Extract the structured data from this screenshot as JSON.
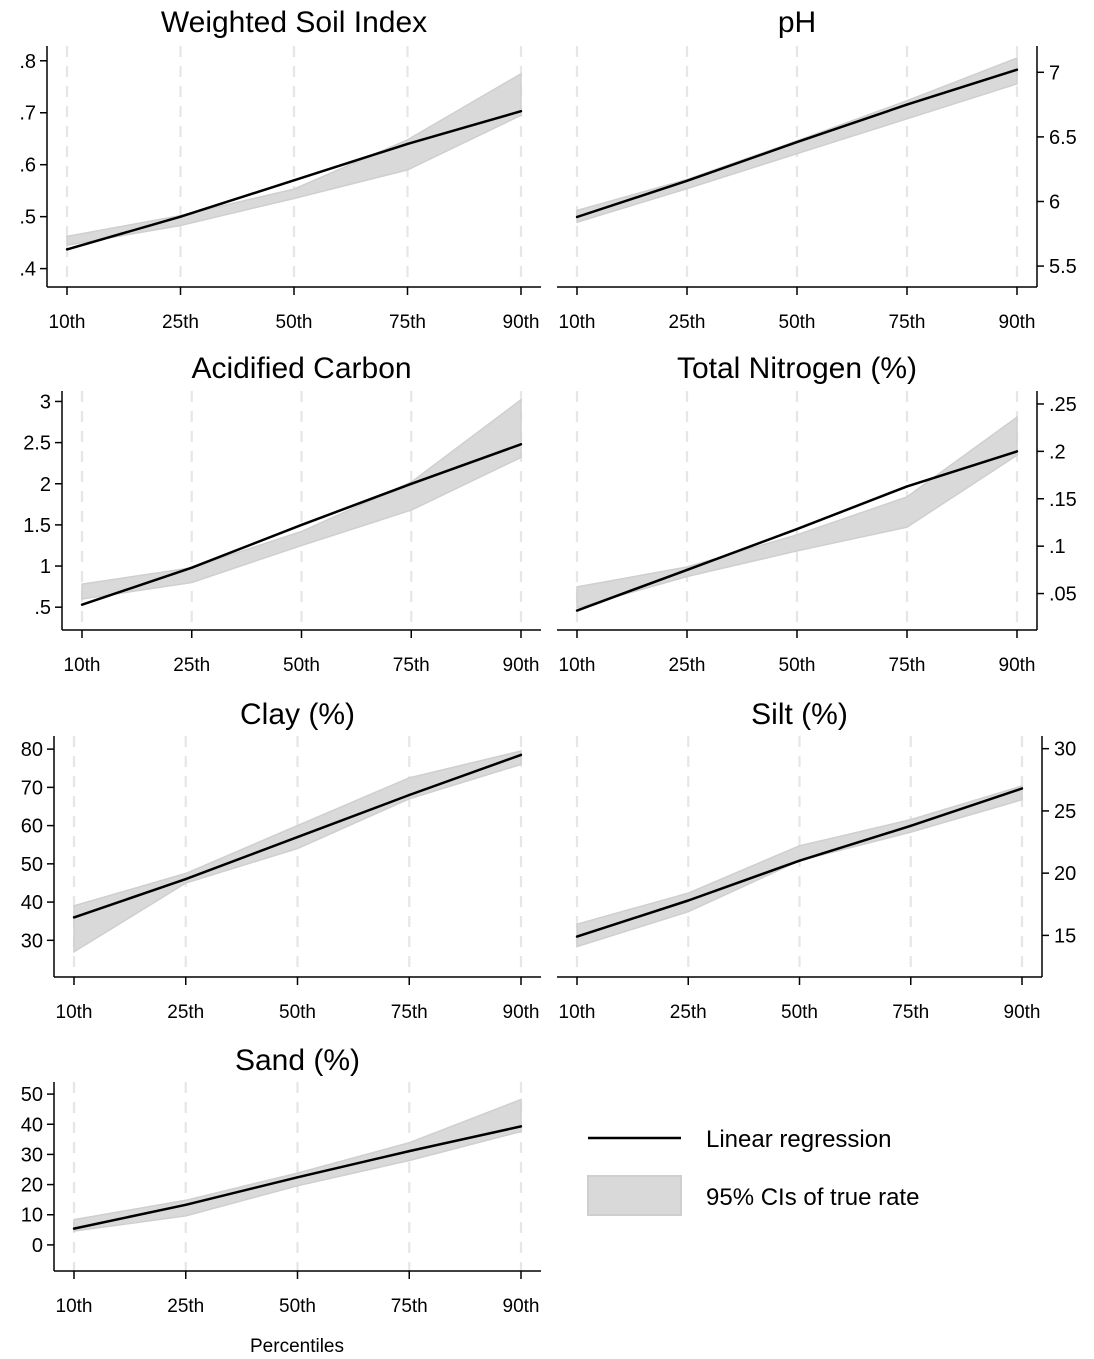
{
  "figure": {
    "xlabel": "Percentiles"
  },
  "legend": {
    "line_label": "Linear regression",
    "band_label": "95% CIs of true rate"
  },
  "colors": {
    "line": "#000000",
    "band": "#d9d9d9",
    "band_edge": "#cfcfcf",
    "gridline": "#e6e6e6"
  },
  "chart_data": [
    {
      "type": "line",
      "title": "Weighted Soil Index",
      "categories": [
        "10th",
        "25th",
        "50th",
        "75th",
        "90th"
      ],
      "series": [
        {
          "name": "Linear regression",
          "values": [
            0.437,
            0.5,
            0.57,
            0.64,
            0.703
          ]
        },
        {
          "name": "95% CIs of true rate",
          "lower": [
            0.445,
            0.483,
            0.535,
            0.59,
            0.695
          ],
          "upper": [
            0.462,
            0.502,
            0.553,
            0.648,
            0.775
          ]
        }
      ],
      "y_ticks": [
        ".4",
        ".5",
        ".6",
        ".7",
        ".8"
      ],
      "y_tick_values": [
        0.4,
        0.5,
        0.6,
        0.7,
        0.8
      ],
      "ylim": [
        0.38,
        0.84
      ],
      "y_axis_side": "left",
      "grid": "vertical dashed"
    },
    {
      "type": "line",
      "title": "pH",
      "categories": [
        "10th",
        "25th",
        "50th",
        "75th",
        "90th"
      ],
      "series": [
        {
          "name": "Linear regression",
          "values": [
            5.88,
            6.16,
            6.46,
            6.75,
            7.02
          ]
        },
        {
          "name": "95% CIs of true rate",
          "lower": [
            5.84,
            6.1,
            6.37,
            6.64,
            6.91
          ],
          "upper": [
            5.93,
            6.17,
            6.47,
            6.78,
            7.11
          ]
        }
      ],
      "y_ticks": [
        "5.5",
        "6",
        "6.5",
        "7"
      ],
      "y_tick_values": [
        5.5,
        6,
        6.5,
        7
      ],
      "ylim": [
        5.4,
        7.25
      ],
      "y_axis_side": "right",
      "grid": "vertical dashed"
    },
    {
      "type": "line",
      "title": "Acidified Carbon",
      "categories": [
        "10th",
        "25th",
        "50th",
        "75th",
        "90th"
      ],
      "series": [
        {
          "name": "Linear regression",
          "values": [
            0.53,
            0.98,
            1.5,
            2.0,
            2.48
          ]
        },
        {
          "name": "95% CIs of true rate",
          "lower": [
            0.6,
            0.8,
            1.25,
            1.68,
            2.32
          ],
          "upper": [
            0.78,
            0.98,
            1.42,
            2.02,
            3.02
          ]
        }
      ],
      "y_ticks": [
        ".5",
        "1",
        "1.5",
        "2",
        "2.5",
        "3"
      ],
      "y_tick_values": [
        0.5,
        1,
        1.5,
        2,
        2.5,
        3
      ],
      "ylim": [
        0.32,
        3.2
      ],
      "y_axis_side": "left",
      "grid": "vertical dashed"
    },
    {
      "type": "line",
      "title": "Total Nitrogen (%)",
      "categories": [
        "10th",
        "25th",
        "50th",
        "75th",
        "90th"
      ],
      "series": [
        {
          "name": "Linear regression",
          "values": [
            0.032,
            0.075,
            0.118,
            0.163,
            0.2
          ]
        },
        {
          "name": "95% CIs of true rate",
          "lower": [
            0.035,
            0.068,
            0.095,
            0.12,
            0.196
          ],
          "upper": [
            0.057,
            0.078,
            0.112,
            0.152,
            0.236
          ]
        }
      ],
      "y_ticks": [
        ".05",
        ".1",
        ".15",
        ".2",
        ".25"
      ],
      "y_tick_values": [
        0.05,
        0.1,
        0.15,
        0.2,
        0.25
      ],
      "ylim": [
        0.02,
        0.27
      ],
      "y_axis_side": "right",
      "grid": "vertical dashed"
    },
    {
      "type": "line",
      "title": "Clay (%)",
      "categories": [
        "10th",
        "25th",
        "50th",
        "75th",
        "90th"
      ],
      "series": [
        {
          "name": "Linear regression",
          "values": [
            36,
            46,
            57,
            68,
            78.5
          ]
        },
        {
          "name": "95% CIs of true rate",
          "lower": [
            27,
            45,
            54,
            67,
            76
          ],
          "upper": [
            39,
            47.5,
            60,
            72.5,
            79.5
          ]
        }
      ],
      "y_ticks": [
        "30",
        "40",
        "50",
        "60",
        "70",
        "80"
      ],
      "y_tick_values": [
        30,
        40,
        50,
        60,
        70,
        80
      ],
      "ylim": [
        22.5,
        85
      ],
      "y_axis_side": "left",
      "grid": "vertical dashed"
    },
    {
      "type": "line",
      "title": "Silt (%)",
      "categories": [
        "10th",
        "25th",
        "50th",
        "75th",
        "90th"
      ],
      "series": [
        {
          "name": "Linear regression",
          "values": [
            14.9,
            17.8,
            21,
            23.8,
            26.8
          ]
        },
        {
          "name": "95% CIs of true rate",
          "lower": [
            14.1,
            16.9,
            21.0,
            23.3,
            25.9
          ],
          "upper": [
            15.9,
            18.4,
            22.2,
            24.3,
            27.0
          ]
        }
      ],
      "y_ticks": [
        "15",
        "20",
        "25",
        "30"
      ],
      "y_tick_values": [
        15,
        20,
        25,
        30
      ],
      "ylim": [
        12.3,
        31.5
      ],
      "y_axis_side": "right",
      "grid": "vertical dashed"
    },
    {
      "type": "line",
      "title": "Sand (%)",
      "categories": [
        "10th",
        "25th",
        "50th",
        "75th",
        "90th"
      ],
      "series": [
        {
          "name": "Linear regression",
          "values": [
            5.4,
            13.3,
            22.4,
            31.1,
            39.3
          ]
        },
        {
          "name": "95% CIs of true rate",
          "lower": [
            4.6,
            9.6,
            19.6,
            28.0,
            37.6
          ],
          "upper": [
            8.4,
            14.8,
            23.8,
            33.9,
            48.2
          ]
        }
      ],
      "y_ticks": [
        "0",
        "10",
        "20",
        "30",
        "40",
        "50"
      ],
      "y_tick_values": [
        0,
        10,
        20,
        30,
        40,
        50
      ],
      "ylim": [
        -6,
        56
      ],
      "y_axis_side": "left",
      "grid": "vertical dashed"
    }
  ]
}
